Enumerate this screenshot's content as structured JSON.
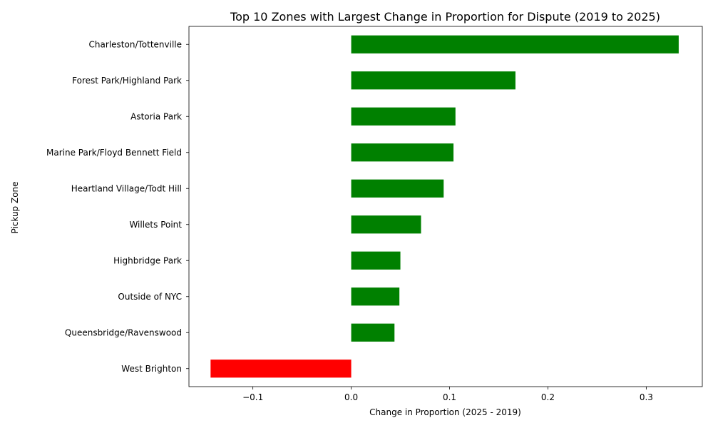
{
  "chart_data": {
    "type": "bar",
    "orientation": "horizontal",
    "title": "Top 10 Zones with Largest Change in Proportion for Dispute (2019 to 2025)",
    "xlabel": "Change in Proportion (2025 - 2019)",
    "ylabel": "Pickup Zone",
    "xlim": [
      -0.165,
      0.357
    ],
    "x_ticks": [
      -0.1,
      0.0,
      0.1,
      0.2,
      0.3
    ],
    "x_tick_labels": [
      "−0.1",
      "0.0",
      "0.1",
      "0.2",
      "0.3"
    ],
    "grid": false,
    "legend": "none",
    "colors": {
      "positive": "#008000",
      "negative": "#ff0000"
    },
    "categories": [
      "Charleston/Tottenville",
      "Forest Park/Highland Park",
      "Astoria Park",
      "Marine Park/Floyd Bennett Field",
      "Heartland Village/Todt Hill",
      "Willets Point",
      "Highbridge Park",
      "Outside of NYC",
      "Queensbridge/Ravenswood",
      "West Brighton"
    ],
    "values": [
      0.333,
      0.167,
      0.106,
      0.104,
      0.094,
      0.071,
      0.05,
      0.049,
      0.044,
      -0.143
    ]
  }
}
